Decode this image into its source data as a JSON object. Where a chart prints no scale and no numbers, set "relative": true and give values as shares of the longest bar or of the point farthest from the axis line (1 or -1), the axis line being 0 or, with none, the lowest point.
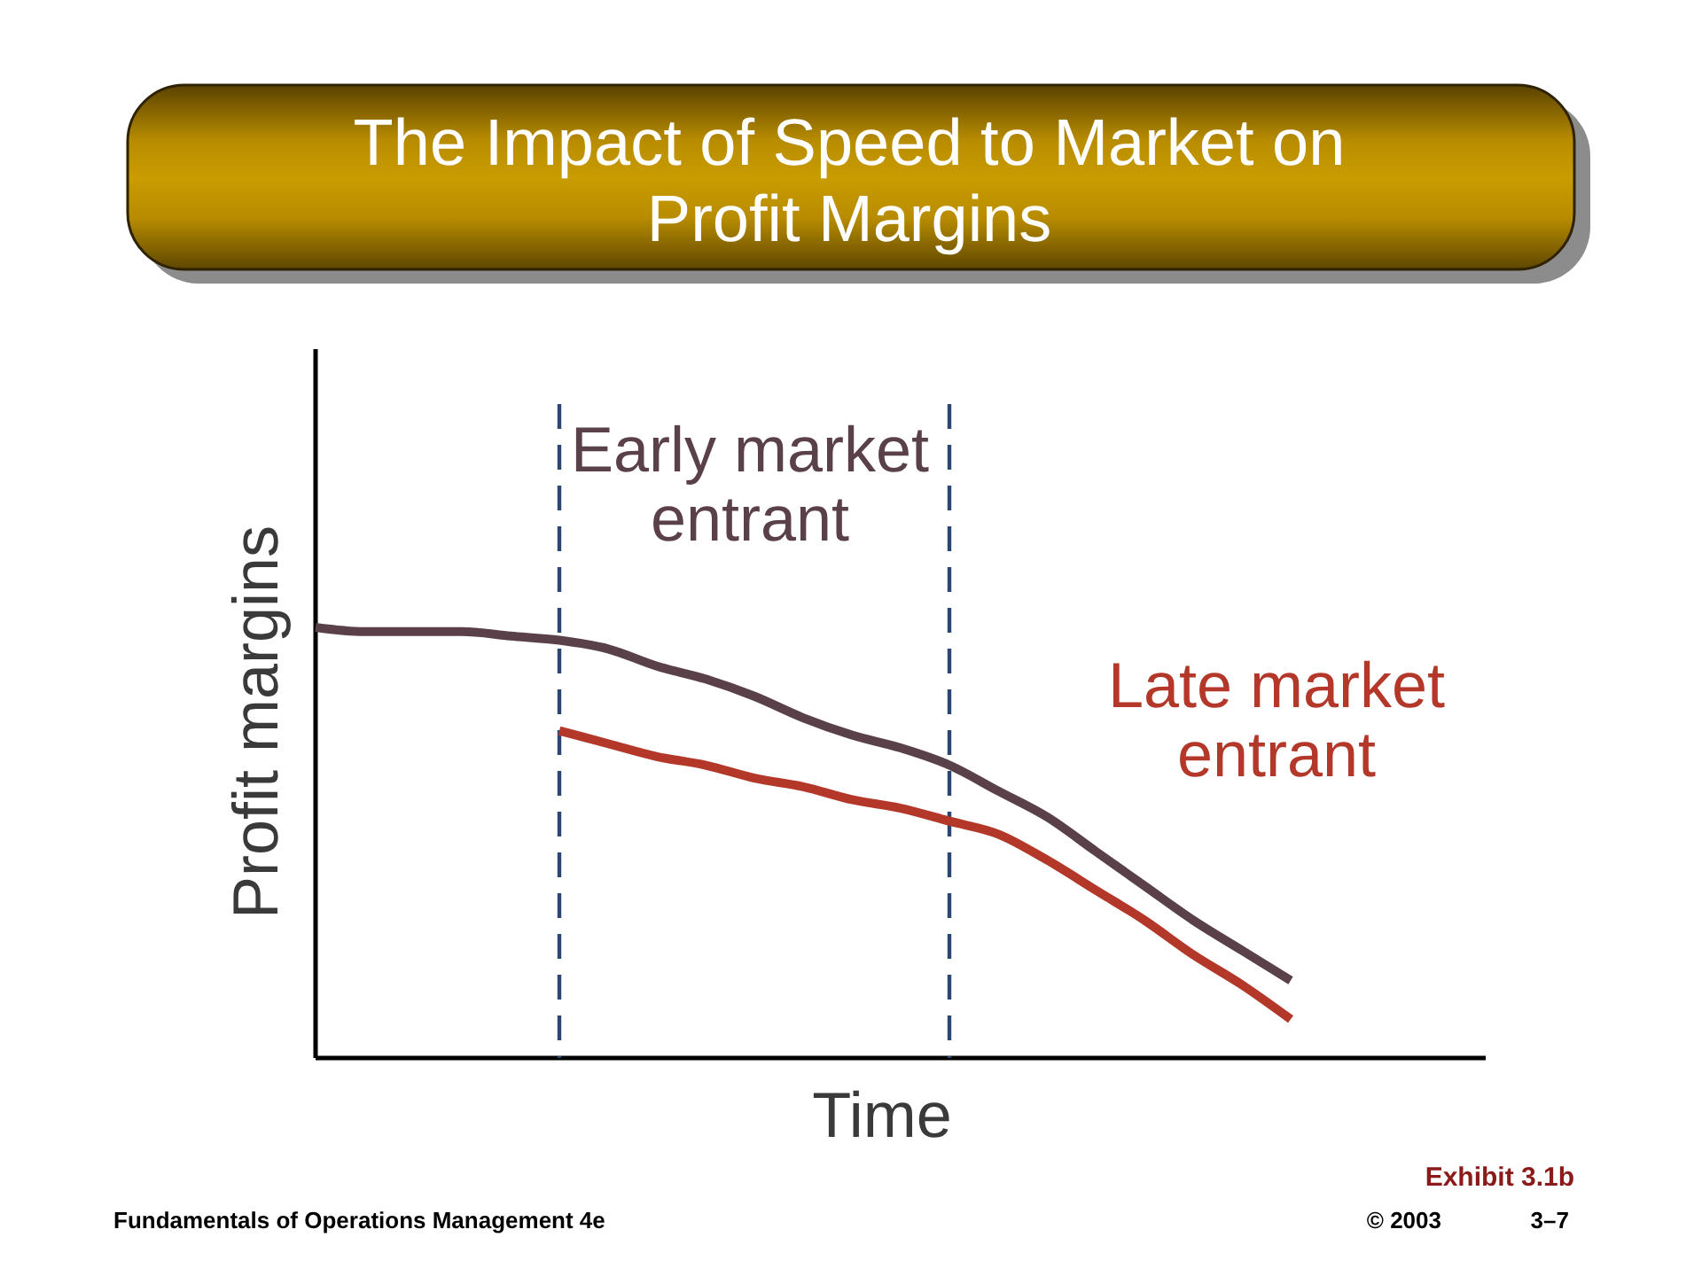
{
  "chart_data": {
    "type": "line",
    "title": "The Impact of Speed to Market on Profit Margins",
    "xlabel": "Time",
    "ylabel": "Profit margins",
    "relative": true,
    "categories": [
      null,
      null,
      null,
      null,
      null,
      null,
      null,
      null,
      null,
      null,
      null,
      null,
      null,
      null,
      null,
      null,
      null,
      null,
      null,
      null,
      null,
      null,
      null,
      null,
      null
    ],
    "series": [
      {
        "name": "Early market entrant",
        "color": "#5a4048",
        "values": [
          1,
          0.99,
          0.99,
          0.99,
          0.98,
          0.97,
          0.95,
          0.91,
          0.88,
          0.84,
          0.79,
          0.75,
          0.72,
          0.68,
          0.62,
          0.56,
          0.48,
          0.4,
          0.32,
          0.25,
          0.18,
          null,
          null,
          null,
          null
        ]
      },
      {
        "name": "Late market entrant",
        "color": "#b4382a",
        "values": [
          null,
          null,
          null,
          null,
          null,
          0.76,
          0.73,
          0.7,
          0.68,
          0.65,
          0.63,
          0.6,
          0.58,
          0.55,
          0.52,
          0.46,
          0.39,
          0.32,
          0.24,
          0.17,
          0.09,
          null,
          null,
          null,
          null
        ]
      }
    ],
    "annotations": [
      "Exhibit 3.1b",
      "Fundamentals of Operations Management 4e",
      "© 2003",
      "3–7"
    ]
  }
}
